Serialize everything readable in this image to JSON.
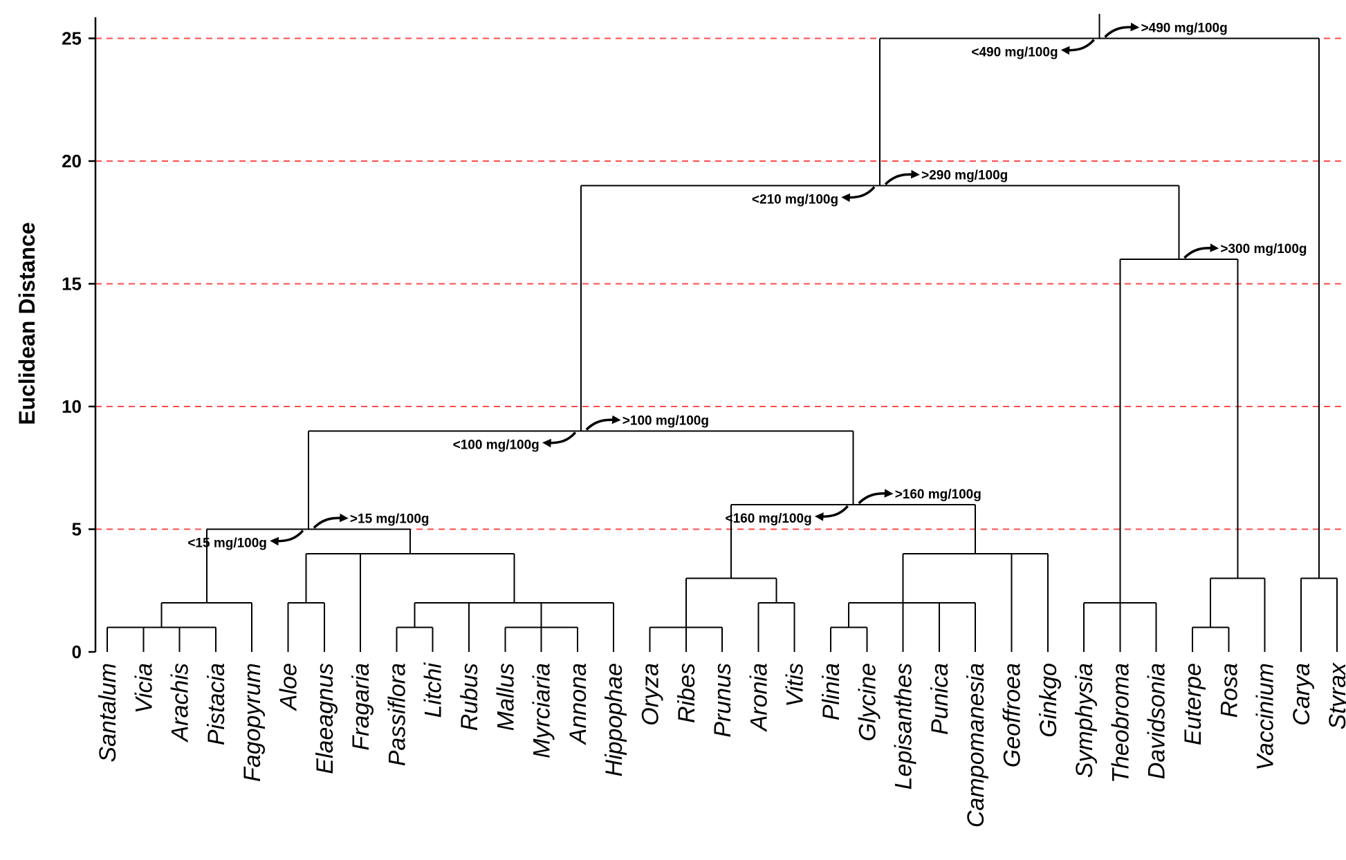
{
  "chart_data": {
    "type": "dendrogram",
    "title": "",
    "xlabel": "",
    "ylabel": "Euclidean Distance",
    "ylim": [
      0,
      25.5
    ],
    "yticks": [
      0,
      5,
      10,
      15,
      20,
      25
    ],
    "grid": {
      "dashed_lines_at": [
        5,
        10,
        15,
        20,
        25
      ],
      "color": "#ff4b4b"
    },
    "leaves": [
      "Santalum",
      "Vicia",
      "Arachis",
      "Pistacia",
      "Fagopyrum",
      "Aloe",
      "Elaeagnus",
      "Fragaria",
      "Passiflora",
      "Litchi",
      "Rubus",
      "Mallus",
      "Myrciaria",
      "Annona",
      "Hippophae",
      "Oryza",
      "Ribes",
      "Prunus",
      "Aronia",
      "Vitis",
      "Plinia",
      "Glycine",
      "Lepisanthes",
      "Punica",
      "Campomanesia",
      "Geoffroea",
      "Ginkgo",
      "Symphysia",
      "Theobroma",
      "Davidsonia",
      "Euterpe",
      "Rosa",
      "Vaccinium",
      "Carya",
      "Styrax"
    ],
    "merges": [
      {
        "id": "c1",
        "children": [
          "Santalum",
          "Vicia",
          "Arachis",
          "Pistacia"
        ],
        "height": 1
      },
      {
        "id": "c2",
        "children": [
          "c1",
          "Fagopyrum"
        ],
        "height": 2
      },
      {
        "id": "c3",
        "children": [
          "Aloe",
          "Elaeagnus"
        ],
        "height": 2
      },
      {
        "id": "c4",
        "children": [
          "Passiflora",
          "Litchi"
        ],
        "height": 1
      },
      {
        "id": "c5",
        "children": [
          "Mallus",
          "Myrciaria",
          "Annona"
        ],
        "height": 1
      },
      {
        "id": "c6",
        "children": [
          "c4",
          "Rubus",
          "c5",
          "Hippophae"
        ],
        "height": 2
      },
      {
        "id": "c7",
        "children": [
          "c3",
          "Fragaria",
          "c6"
        ],
        "height": 4
      },
      {
        "id": "c8",
        "children": [
          "c2",
          "c7"
        ],
        "height": 5
      },
      {
        "id": "c9",
        "children": [
          "Oryza",
          "Ribes",
          "Prunus"
        ],
        "height": 1
      },
      {
        "id": "c10",
        "children": [
          "Aronia",
          "Vitis"
        ],
        "height": 2
      },
      {
        "id": "c11",
        "children": [
          "c9",
          "c10"
        ],
        "height": 3
      },
      {
        "id": "c12",
        "children": [
          "Plinia",
          "Glycine"
        ],
        "height": 1
      },
      {
        "id": "c13",
        "children": [
          "Punica",
          "Campomanesia"
        ],
        "height": 2
      },
      {
        "id": "c14",
        "children": [
          "c12",
          "Lepisanthes",
          "c13"
        ],
        "height": 2
      },
      {
        "id": "c15",
        "children": [
          "c14",
          "Geoffroea",
          "Ginkgo"
        ],
        "height": 4
      },
      {
        "id": "c16",
        "children": [
          "c11",
          "c15"
        ],
        "height": 6
      },
      {
        "id": "c17",
        "children": [
          "c8",
          "c16"
        ],
        "height": 9
      },
      {
        "id": "c18",
        "children": [
          "Symphysia",
          "Theobroma",
          "Davidsonia"
        ],
        "height": 2
      },
      {
        "id": "c19",
        "children": [
          "Euterpe",
          "Rosa"
        ],
        "height": 1
      },
      {
        "id": "c20",
        "children": [
          "c19",
          "Vaccinium"
        ],
        "height": 3
      },
      {
        "id": "c21",
        "children": [
          "c18",
          "c20"
        ],
        "height": 16
      },
      {
        "id": "c22",
        "children": [
          "c17",
          "c21"
        ],
        "height": 19
      },
      {
        "id": "c23",
        "children": [
          "Carya",
          "Styrax"
        ],
        "height": 3
      },
      {
        "id": "c24",
        "children": [
          "c22",
          "c23"
        ],
        "height": 25
      }
    ],
    "root_stem_top": 26,
    "annotations": [
      {
        "text": ">490 mg/100g",
        "node": "c24",
        "dir": "right"
      },
      {
        "text": "<490 mg/100g",
        "node": "c24",
        "dir": "left"
      },
      {
        "text": ">290 mg/100g",
        "node": "c22",
        "dir": "right"
      },
      {
        "text": "<210 mg/100g",
        "node": "c22",
        "dir": "left"
      },
      {
        "text": ">300 mg/100g",
        "node": "c21",
        "dir": "right"
      },
      {
        "text": ">100 mg/100g",
        "node": "c17",
        "dir": "right"
      },
      {
        "text": "<100 mg/100g",
        "node": "c17",
        "dir": "left"
      },
      {
        "text": "<160 mg/100g",
        "node": "c16",
        "dir": "left"
      },
      {
        "text": ">160 mg/100g",
        "node": "c16",
        "dir": "right"
      },
      {
        "text": "<15 mg/100g",
        "node": "c8",
        "dir": "left"
      },
      {
        "text": ">15 mg/100g",
        "node": "c8",
        "dir": "right"
      }
    ]
  }
}
